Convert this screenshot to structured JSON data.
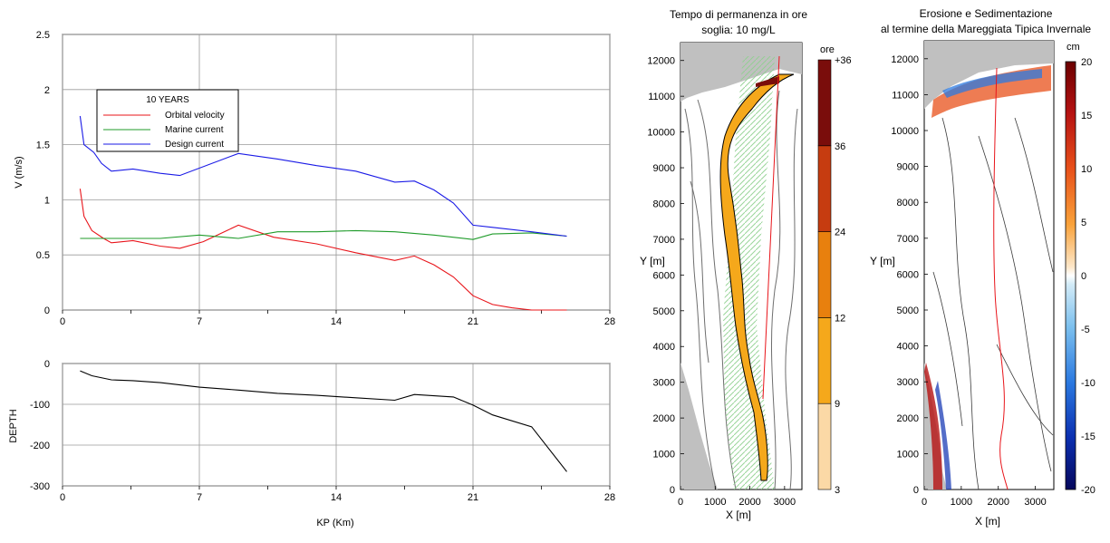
{
  "chart_data": [
    {
      "type": "line",
      "ylabel": "V (m/s)",
      "xlim": [
        0,
        28
      ],
      "ylim": [
        0,
        2.5
      ],
      "xticks": [
        "0",
        "7",
        "14",
        "21",
        "28"
      ],
      "yticks": [
        "0",
        "0.5",
        "1",
        "1.5",
        "2",
        "2.5"
      ],
      "grid": true,
      "legend_title": "10 YEARS",
      "legend_position": "top-left",
      "series": [
        {
          "name": "Orbital velocity",
          "color": "#e8141a",
          "x": [
            0.9,
            1.1,
            1.5,
            2.1,
            2.5,
            3.6,
            5.0,
            6.0,
            7.2,
            9.0,
            10.8,
            13.0,
            15.0,
            17.0,
            18.0,
            19.0,
            20.0,
            21.0,
            22.0,
            23.0,
            24.0,
            25.0,
            25.8
          ],
          "y": [
            1.1,
            0.85,
            0.72,
            0.65,
            0.61,
            0.63,
            0.58,
            0.56,
            0.62,
            0.77,
            0.66,
            0.6,
            0.52,
            0.45,
            0.49,
            0.41,
            0.3,
            0.13,
            0.05,
            0.02,
            0.0,
            0.0,
            0.0
          ]
        },
        {
          "name": "Marine current",
          "color": "#1f9b2a",
          "x": [
            0.9,
            2.0,
            5.0,
            7.0,
            9.0,
            11.0,
            13.0,
            15.0,
            17.0,
            19.0,
            21.0,
            22.0,
            24.0,
            25.8
          ],
          "y": [
            0.65,
            0.65,
            0.65,
            0.68,
            0.65,
            0.71,
            0.71,
            0.72,
            0.71,
            0.68,
            0.64,
            0.69,
            0.7,
            0.67
          ]
        },
        {
          "name": "Design current",
          "color": "#1a1ae6",
          "x": [
            0.9,
            1.1,
            1.6,
            2.0,
            2.5,
            3.6,
            5.0,
            6.0,
            9.0,
            11.0,
            13.0,
            15.0,
            17.0,
            18.0,
            19.0,
            20.0,
            21.0,
            22.0,
            24.0,
            25.8
          ],
          "y": [
            1.76,
            1.5,
            1.43,
            1.33,
            1.26,
            1.28,
            1.24,
            1.22,
            1.42,
            1.37,
            1.31,
            1.26,
            1.16,
            1.17,
            1.09,
            0.97,
            0.77,
            0.75,
            0.71,
            0.67
          ]
        }
      ]
    },
    {
      "type": "line",
      "xlabel": "KP (Km)",
      "ylabel": "DEPTH",
      "xlim": [
        0,
        28
      ],
      "ylim": [
        -300,
        0
      ],
      "xticks": [
        "0",
        "7",
        "14",
        "21",
        "28"
      ],
      "yticks": [
        "0",
        "-100",
        "-200",
        "-300"
      ],
      "grid": true,
      "series": [
        {
          "color": "#000000",
          "x": [
            0.9,
            1.5,
            2.5,
            3.6,
            5.0,
            7.0,
            9.0,
            11.0,
            13.0,
            15.0,
            17.0,
            18.0,
            20.0,
            21.0,
            22.0,
            24.0,
            25.8
          ],
          "y": [
            -18,
            -30,
            -40,
            -42,
            -47,
            -58,
            -65,
            -73,
            -78,
            -84,
            -90,
            -76,
            -82,
            -102,
            -126,
            -155,
            -265
          ]
        }
      ]
    },
    {
      "type": "heatmap",
      "title": "Tempo di permanenza in ore",
      "subtitle": "soglia: 10 mg/L",
      "xlabel": "X [m]",
      "ylabel": "Y [m]",
      "xticks": [
        "0",
        "1000",
        "2000",
        "3000"
      ],
      "yticks": [
        "0",
        "1000",
        "2000",
        "3000",
        "4000",
        "5000",
        "6000",
        "7000",
        "8000",
        "9000",
        "10000",
        "11000",
        "12000"
      ],
      "xlim": [
        0,
        3500
      ],
      "ylim": [
        0,
        12500
      ],
      "colorbar": {
        "label": "ore",
        "levels": [
          "3",
          "9",
          "12",
          "24",
          "36",
          "+36"
        ],
        "colors": [
          "#fbd9a6",
          "#f5a81b",
          "#e8800e",
          "#c63c10",
          "#7a0d0b"
        ]
      }
    },
    {
      "type": "heatmap",
      "title": "Erosione e Sedimentazione",
      "subtitle": "al termine della Mareggiata Tipica Invernale",
      "xlabel": "X [m]",
      "ylabel": "Y [m]",
      "xticks": [
        "0",
        "1000",
        "2000",
        "3000"
      ],
      "yticks": [
        "0",
        "1000",
        "2000",
        "3000",
        "4000",
        "5000",
        "6000",
        "7000",
        "8000",
        "9000",
        "10000",
        "11000",
        "12000"
      ],
      "xlim": [
        0,
        3500
      ],
      "ylim": [
        0,
        12500
      ],
      "colorbar": {
        "label": "cm",
        "ticks": [
          "20",
          "15",
          "10",
          "5",
          "0",
          "-5",
          "-10",
          "-15",
          "-20"
        ],
        "range": [
          -20,
          20
        ]
      }
    }
  ]
}
